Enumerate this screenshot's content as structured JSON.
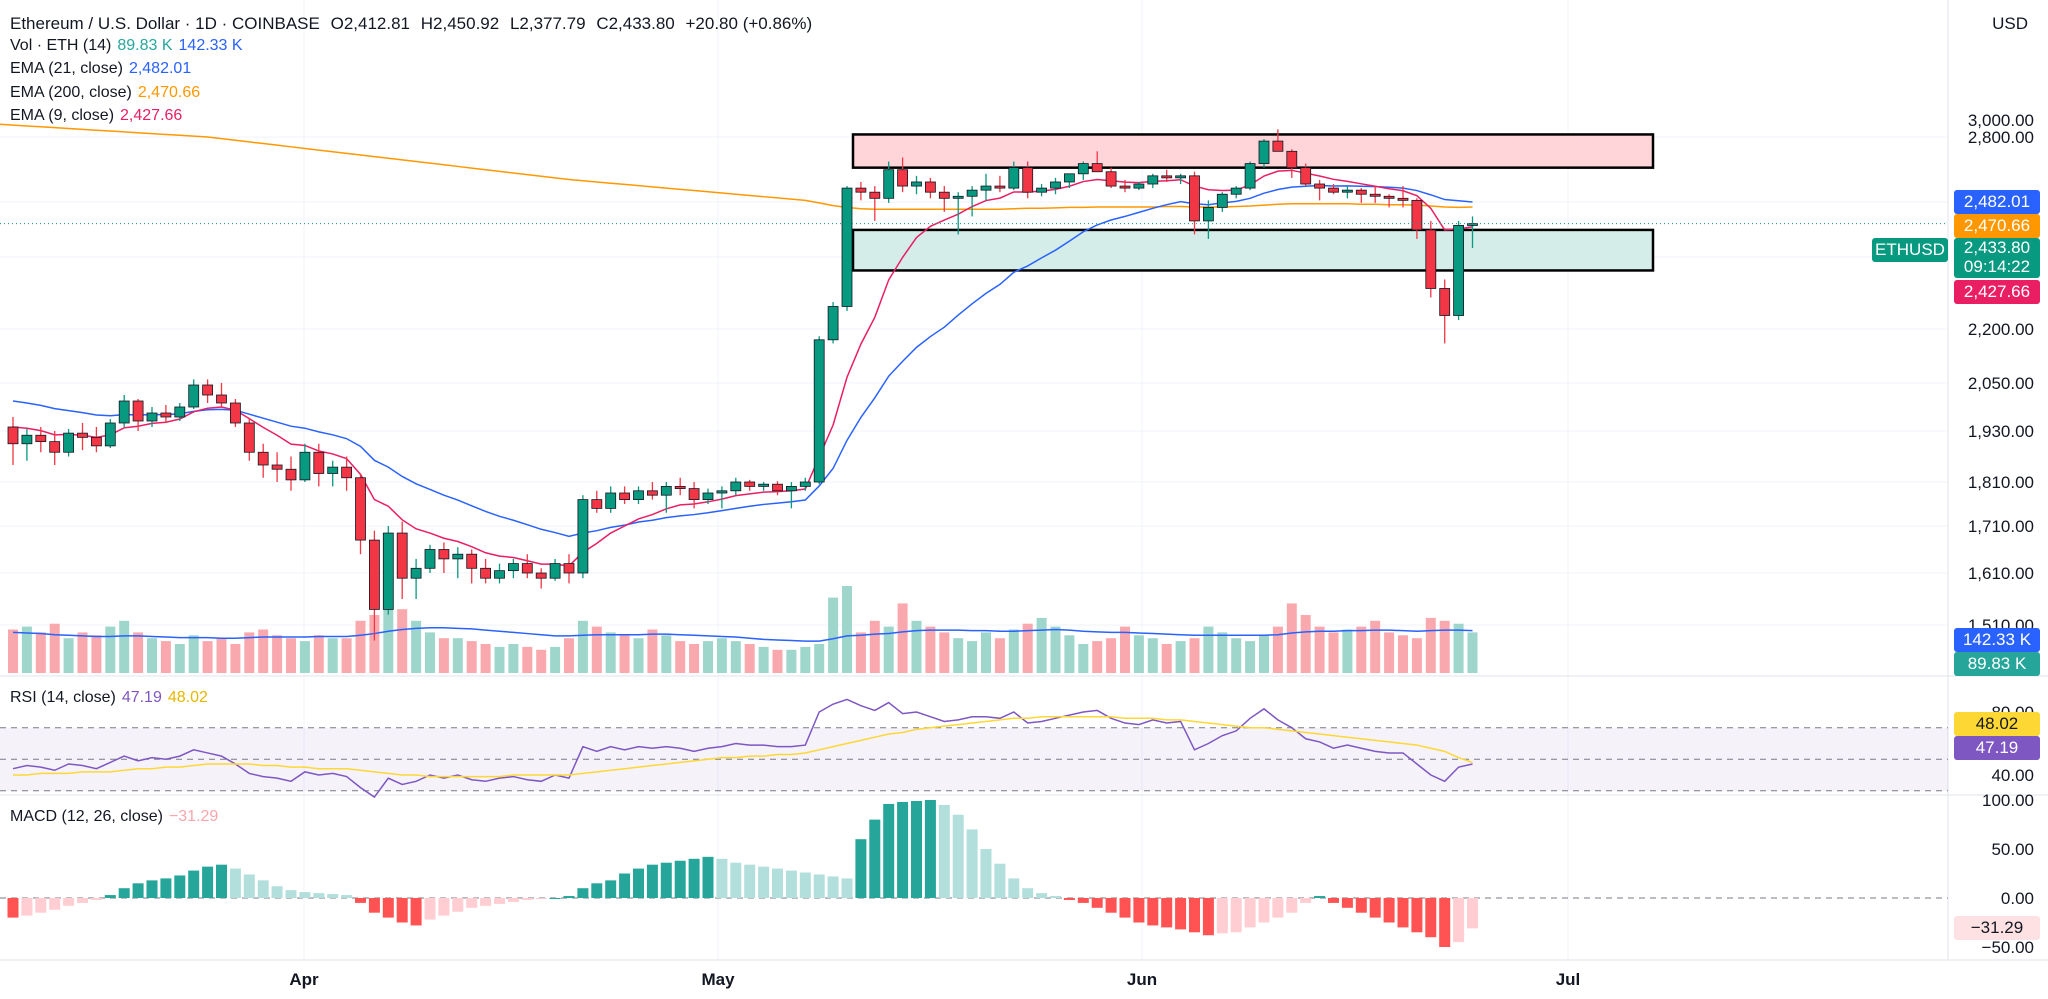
{
  "header": {
    "symbol": "Ethereum / U.S. Dollar · 1D · COINBASE",
    "open": "O2,412.81",
    "high": "H2,450.92",
    "low": "L2,377.79",
    "close": "C2,433.80",
    "change": "+20.80 (+0.86%)",
    "currency": "USD"
  },
  "legends": {
    "vol": {
      "label": "Vol · ETH (14)",
      "v1": "89.83 K",
      "v2": "142.33 K"
    },
    "ema21": {
      "label": "EMA (21, close)",
      "value": "2,482.01"
    },
    "ema200": {
      "label": "EMA (200, close)",
      "value": "2,470.66"
    },
    "ema9": {
      "label": "EMA (9, close)",
      "value": "2,427.66"
    },
    "rsi": {
      "label": "RSI (14, close)",
      "v1": "47.19",
      "v2": "48.02"
    },
    "macd": {
      "label": "MACD (12, 26, close)",
      "value": "−31.29"
    }
  },
  "tags": {
    "ema21": "2,482.01",
    "ema200": "2,470.66",
    "symbol": "ETHUSD",
    "price": "2,433.80",
    "countdown": "09:14:22",
    "ema9": "2,427.66",
    "vol_ma": "142.33 K",
    "vol": "89.83 K",
    "rsi_ma": "48.02",
    "rsi": "47.19",
    "macd": "−31.29"
  },
  "colors": {
    "up": "#089981",
    "down": "#f23645",
    "ema9": "#e91e63",
    "ema21": "#2962ff",
    "ema200": "#ff9800",
    "rsi": "#7e57c2",
    "rsi_ma": "#fdd835"
  },
  "chart_data": {
    "type": "candlestick",
    "price_axis": {
      "ticks": [
        "3,000.00",
        "2,800.00",
        "2,482.01",
        "2,200.00",
        "2,050.00",
        "1,930.00",
        "1,810.00",
        "1,710.00",
        "1,610.00",
        "1,510.00"
      ],
      "tick_values": [
        3000,
        2800,
        2482,
        2200,
        2050,
        1930,
        1810,
        1710,
        1610,
        1510
      ]
    },
    "rsi_axis": {
      "ticks": [
        "80.00",
        "40.00"
      ]
    },
    "macd_axis": {
      "ticks": [
        "100.00",
        "50.00",
        "0.00",
        "−50.00"
      ]
    },
    "x_labels": [
      "Apr",
      "May",
      "Jun",
      "Jul"
    ],
    "zones": [
      {
        "name": "resistance",
        "from": 2650,
        "to": 2830
      },
      {
        "name": "support",
        "from": 2330,
        "to": 2420
      }
    ],
    "candles": [
      [
        1940,
        1965,
        1850,
        1900
      ],
      [
        1900,
        1935,
        1860,
        1920
      ],
      [
        1920,
        1940,
        1880,
        1905
      ],
      [
        1905,
        1930,
        1850,
        1880
      ],
      [
        1880,
        1935,
        1870,
        1925
      ],
      [
        1925,
        1950,
        1885,
        1915
      ],
      [
        1915,
        1940,
        1880,
        1895
      ],
      [
        1895,
        1960,
        1890,
        1950
      ],
      [
        1950,
        2020,
        1940,
        2005
      ],
      [
        2005,
        2010,
        1930,
        1955
      ],
      [
        1955,
        1990,
        1940,
        1975
      ],
      [
        1975,
        1995,
        1950,
        1965
      ],
      [
        1965,
        2000,
        1955,
        1990
      ],
      [
        1990,
        2060,
        1985,
        2045
      ],
      [
        2045,
        2060,
        2000,
        2020
      ],
      [
        2020,
        2050,
        1990,
        2000
      ],
      [
        2000,
        2010,
        1940,
        1950
      ],
      [
        1950,
        1960,
        1860,
        1880
      ],
      [
        1880,
        1900,
        1820,
        1850
      ],
      [
        1850,
        1880,
        1810,
        1840
      ],
      [
        1840,
        1870,
        1790,
        1815
      ],
      [
        1815,
        1900,
        1810,
        1880
      ],
      [
        1880,
        1900,
        1800,
        1830
      ],
      [
        1830,
        1860,
        1800,
        1845
      ],
      [
        1845,
        1870,
        1790,
        1820
      ],
      [
        1820,
        1830,
        1650,
        1680
      ],
      [
        1680,
        1700,
        1480,
        1540
      ],
      [
        1540,
        1710,
        1530,
        1695
      ],
      [
        1695,
        1720,
        1560,
        1600
      ],
      [
        1600,
        1640,
        1560,
        1620
      ],
      [
        1620,
        1670,
        1610,
        1660
      ],
      [
        1660,
        1675,
        1610,
        1640
      ],
      [
        1640,
        1665,
        1600,
        1650
      ],
      [
        1650,
        1660,
        1590,
        1620
      ],
      [
        1620,
        1640,
        1590,
        1600
      ],
      [
        1600,
        1630,
        1590,
        1615
      ],
      [
        1615,
        1640,
        1600,
        1630
      ],
      [
        1630,
        1650,
        1600,
        1610
      ],
      [
        1610,
        1620,
        1580,
        1600
      ],
      [
        1600,
        1640,
        1595,
        1630
      ],
      [
        1630,
        1650,
        1590,
        1610
      ],
      [
        1610,
        1780,
        1600,
        1770
      ],
      [
        1770,
        1790,
        1740,
        1750
      ],
      [
        1750,
        1800,
        1740,
        1785
      ],
      [
        1785,
        1800,
        1760,
        1770
      ],
      [
        1770,
        1800,
        1760,
        1790
      ],
      [
        1790,
        1810,
        1770,
        1780
      ],
      [
        1780,
        1810,
        1740,
        1800
      ],
      [
        1800,
        1820,
        1780,
        1795
      ],
      [
        1795,
        1810,
        1750,
        1770
      ],
      [
        1770,
        1795,
        1760,
        1785
      ],
      [
        1785,
        1800,
        1750,
        1790
      ],
      [
        1790,
        1820,
        1780,
        1810
      ],
      [
        1810,
        1815,
        1790,
        1800
      ],
      [
        1800,
        1810,
        1790,
        1805
      ],
      [
        1805,
        1812,
        1780,
        1790
      ],
      [
        1790,
        1810,
        1750,
        1800
      ],
      [
        1800,
        1820,
        1790,
        1810
      ],
      [
        1810,
        2180,
        1805,
        2170
      ],
      [
        2170,
        2260,
        2160,
        2250
      ],
      [
        2250,
        2560,
        2240,
        2550
      ],
      [
        2550,
        2580,
        2490,
        2530
      ],
      [
        2530,
        2560,
        2440,
        2500
      ],
      [
        2500,
        2680,
        2480,
        2640
      ],
      [
        2640,
        2700,
        2530,
        2560
      ],
      [
        2560,
        2610,
        2520,
        2580
      ],
      [
        2580,
        2600,
        2500,
        2530
      ],
      [
        2530,
        2560,
        2460,
        2500
      ],
      [
        2500,
        2530,
        2410,
        2510
      ],
      [
        2510,
        2560,
        2450,
        2540
      ],
      [
        2540,
        2620,
        2490,
        2560
      ],
      [
        2560,
        2610,
        2530,
        2550
      ],
      [
        2550,
        2680,
        2540,
        2650
      ],
      [
        2650,
        2680,
        2500,
        2530
      ],
      [
        2530,
        2570,
        2510,
        2550
      ],
      [
        2550,
        2600,
        2520,
        2580
      ],
      [
        2580,
        2620,
        2550,
        2620
      ],
      [
        2620,
        2680,
        2590,
        2670
      ],
      [
        2670,
        2730,
        2630,
        2630
      ],
      [
        2630,
        2650,
        2550,
        2560
      ],
      [
        2560,
        2590,
        2530,
        2550
      ],
      [
        2550,
        2580,
        2540,
        2570
      ],
      [
        2570,
        2620,
        2550,
        2610
      ],
      [
        2610,
        2640,
        2580,
        2600
      ],
      [
        2600,
        2620,
        2570,
        2610
      ],
      [
        2610,
        2630,
        2410,
        2440
      ],
      [
        2440,
        2490,
        2400,
        2470
      ],
      [
        2470,
        2530,
        2460,
        2520
      ],
      [
        2520,
        2560,
        2500,
        2550
      ],
      [
        2550,
        2680,
        2540,
        2670
      ],
      [
        2670,
        2790,
        2650,
        2780
      ],
      [
        2780,
        2890,
        2740,
        2730
      ],
      [
        2730,
        2740,
        2600,
        2650
      ],
      [
        2650,
        2670,
        2560,
        2570
      ],
      [
        2570,
        2590,
        2490,
        2550
      ],
      [
        2550,
        2570,
        2520,
        2530
      ],
      [
        2530,
        2560,
        2500,
        2540
      ],
      [
        2540,
        2550,
        2480,
        2520
      ],
      [
        2520,
        2560,
        2480,
        2510
      ],
      [
        2510,
        2520,
        2470,
        2500
      ],
      [
        2500,
        2560,
        2470,
        2490
      ],
      [
        2490,
        2500,
        2400,
        2420
      ],
      [
        2420,
        2440,
        2270,
        2290
      ],
      [
        2290,
        2310,
        2160,
        2230
      ],
      [
        2230,
        2440,
        2220,
        2430
      ],
      [
        2430,
        2450,
        2380,
        2434
      ]
    ],
    "ema9": [
      1940,
      1937,
      1931,
      1921,
      1922,
      1920,
      1915,
      1921,
      1938,
      1942,
      1949,
      1952,
      1960,
      1978,
      1987,
      1990,
      1982,
      1961,
      1939,
      1920,
      1899,
      1896,
      1883,
      1876,
      1865,
      1828,
      1770,
      1755,
      1724,
      1704,
      1695,
      1684,
      1677,
      1666,
      1653,
      1646,
      1643,
      1636,
      1629,
      1629,
      1625,
      1654,
      1673,
      1695,
      1710,
      1726,
      1736,
      1749,
      1758,
      1760,
      1765,
      1771,
      1779,
      1783,
      1787,
      1788,
      1790,
      1794,
      1869,
      1945,
      2066,
      2158,
      2226,
      2309,
      2359,
      2403,
      2428,
      2442,
      2455,
      2472,
      2489,
      2501,
      2531,
      2531,
      2535,
      2544,
      2559,
      2582,
      2592,
      2586,
      2579,
      2577,
      2583,
      2586,
      2591,
      2560,
      2542,
      2538,
      2540,
      2566,
      2609,
      2633,
      2637,
      2623,
      2609,
      2593,
      2583,
      2571,
      2559,
      2547,
      2537,
      2513,
      2468,
      2420,
      2422,
      2427
    ],
    "ema21": [
      2005,
      2000,
      1994,
      1986,
      1981,
      1976,
      1970,
      1968,
      1971,
      1970,
      1971,
      1971,
      1973,
      1979,
      1983,
      1984,
      1982,
      1972,
      1962,
      1952,
      1942,
      1937,
      1928,
      1921,
      1912,
      1894,
      1861,
      1845,
      1823,
      1806,
      1793,
      1780,
      1769,
      1756,
      1743,
      1732,
      1723,
      1713,
      1703,
      1696,
      1688,
      1695,
      1700,
      1707,
      1712,
      1719,
      1723,
      1729,
      1733,
      1736,
      1740,
      1745,
      1750,
      1755,
      1759,
      1762,
      1765,
      1769,
      1801,
      1842,
      1908,
      1964,
      2013,
      2069,
      2110,
      2149,
      2179,
      2204,
      2231,
      2256,
      2279,
      2299,
      2326,
      2340,
      2358,
      2375,
      2395,
      2416,
      2431,
      2442,
      2450,
      2459,
      2468,
      2476,
      2484,
      2478,
      2476,
      2480,
      2485,
      2500,
      2525,
      2543,
      2555,
      2559,
      2563,
      2560,
      2561,
      2559,
      2557,
      2554,
      2550,
      2538,
      2517,
      2494,
      2488,
      2482
    ],
    "ema200": [
      2940,
      2930,
      2920,
      2910,
      2900,
      2890,
      2880,
      2870,
      2860,
      2850,
      2840,
      2830,
      2820,
      2810,
      2800,
      2792,
      2784,
      2776,
      2768,
      2760,
      2752,
      2744,
      2736,
      2728,
      2720,
      2712,
      2704,
      2696,
      2688,
      2680,
      2672,
      2664,
      2656,
      2648,
      2640,
      2632,
      2624,
      2616,
      2608,
      2600,
      2592,
      2586,
      2580,
      2574,
      2568,
      2562,
      2556,
      2550,
      2544,
      2538,
      2532,
      2526,
      2520,
      2514,
      2508,
      2502,
      2496,
      2490,
      2480,
      2474,
      2470,
      2467,
      2466,
      2466,
      2466,
      2466,
      2466,
      2466,
      2466,
      2466,
      2466,
      2466,
      2467,
      2468,
      2468,
      2469,
      2470,
      2470,
      2471,
      2471,
      2471,
      2471,
      2471,
      2472,
      2472,
      2471,
      2471,
      2471,
      2472,
      2473,
      2475,
      2477,
      2478,
      2478,
      2478,
      2478,
      2478,
      2477,
      2477,
      2476,
      2476,
      2475,
      2473,
      2471,
      2470,
      2471
    ],
    "volume": [
      75,
      80,
      70,
      85,
      60,
      70,
      65,
      80,
      90,
      70,
      60,
      55,
      50,
      65,
      55,
      60,
      50,
      70,
      75,
      65,
      60,
      55,
      65,
      60,
      60,
      90,
      100,
      120,
      110,
      90,
      70,
      60,
      60,
      55,
      50,
      45,
      50,
      45,
      40,
      45,
      60,
      90,
      80,
      70,
      65,
      60,
      75,
      65,
      55,
      50,
      55,
      60,
      55,
      50,
      45,
      40,
      40,
      45,
      50,
      130,
      150,
      70,
      90,
      80,
      120,
      90,
      80,
      70,
      60,
      55,
      70,
      60,
      75,
      85,
      95,
      80,
      65,
      50,
      55,
      60,
      80,
      65,
      60,
      50,
      55,
      60,
      80,
      70,
      60,
      55,
      65,
      80,
      120,
      100,
      80,
      70,
      75,
      80,
      90,
      70,
      65,
      60,
      95,
      90,
      85,
      70
    ],
    "vol_ma": [
      70,
      69,
      68,
      66,
      65,
      64,
      63,
      63,
      64,
      64,
      63,
      62,
      61,
      61,
      61,
      60,
      60,
      61,
      62,
      62,
      62,
      62,
      63,
      63,
      63,
      65,
      68,
      72,
      75,
      77,
      78,
      78,
      77,
      76,
      74,
      72,
      70,
      68,
      66,
      64,
      64,
      65,
      66,
      66,
      66,
      66,
      67,
      67,
      66,
      65,
      64,
      63,
      62,
      60,
      58,
      57,
      56,
      55,
      55,
      59,
      64,
      65,
      67,
      68,
      71,
      73,
      74,
      74,
      74,
      73,
      73,
      72,
      72,
      73,
      74,
      75,
      74,
      72,
      71,
      70,
      70,
      69,
      68,
      67,
      66,
      65,
      65,
      65,
      65,
      65,
      65,
      66,
      69,
      71,
      72,
      72,
      73,
      73,
      74,
      74,
      73,
      72,
      73,
      74,
      74,
      73
    ],
    "rsi": [
      44,
      46,
      45,
      43,
      47,
      46,
      44,
      48,
      52,
      49,
      51,
      50,
      52,
      56,
      54,
      52,
      47,
      41,
      39,
      38,
      36,
      42,
      40,
      41,
      39,
      32,
      26,
      38,
      34,
      36,
      40,
      38,
      40,
      37,
      36,
      38,
      39,
      37,
      36,
      40,
      38,
      58,
      55,
      58,
      56,
      58,
      57,
      58,
      57,
      55,
      57,
      58,
      60,
      59,
      59,
      58,
      58,
      59,
      80,
      85,
      88,
      84,
      81,
      86,
      79,
      80,
      77,
      74,
      75,
      77,
      77,
      76,
      80,
      73,
      74,
      76,
      78,
      80,
      81,
      76,
      73,
      72,
      75,
      73,
      74,
      56,
      60,
      65,
      68,
      76,
      82,
      75,
      70,
      63,
      61,
      57,
      59,
      57,
      55,
      54,
      54,
      47,
      40,
      36,
      45,
      47
    ],
    "rsi_ma": [
      40,
      40,
      41,
      41,
      41,
      42,
      42,
      42,
      43,
      44,
      44,
      45,
      45,
      46,
      47,
      47,
      47,
      47,
      46,
      46,
      45,
      45,
      44,
      44,
      44,
      43,
      42,
      41,
      40,
      40,
      39,
      39,
      39,
      39,
      39,
      39,
      40,
      40,
      40,
      40,
      40,
      41,
      42,
      43,
      44,
      45,
      46,
      47,
      48,
      49,
      50,
      51,
      51,
      52,
      52,
      53,
      53,
      54,
      56,
      58,
      60,
      62,
      64,
      66,
      67,
      69,
      70,
      71,
      72,
      73,
      74,
      75,
      76,
      76,
      77,
      77,
      77,
      77,
      77,
      77,
      76,
      76,
      76,
      75,
      75,
      74,
      73,
      72,
      71,
      70,
      70,
      69,
      68,
      67,
      66,
      65,
      64,
      63,
      62,
      61,
      60,
      59,
      57,
      55,
      51,
      48
    ],
    "macd": [
      -20,
      -18,
      -15,
      -12,
      -8,
      -5,
      -2,
      3,
      10,
      15,
      18,
      20,
      23,
      28,
      32,
      34,
      30,
      24,
      18,
      12,
      8,
      6,
      5,
      4,
      3,
      -5,
      -15,
      -20,
      -25,
      -28,
      -22,
      -18,
      -14,
      -10,
      -8,
      -6,
      -4,
      -2,
      -1,
      0,
      2,
      10,
      15,
      18,
      25,
      30,
      34,
      36,
      38,
      40,
      42,
      40,
      36,
      34,
      32,
      30,
      28,
      26,
      24,
      22,
      20,
      60,
      80,
      96,
      98,
      99,
      100,
      95,
      85,
      70,
      50,
      35,
      20,
      10,
      5,
      2,
      -2,
      -5,
      -10,
      -15,
      -20,
      -25,
      -28,
      -30,
      -32,
      -35,
      -38,
      -36,
      -35,
      -30,
      -25,
      -20,
      -15,
      -5,
      2,
      -5,
      -10,
      -15,
      -20,
      -25,
      -30,
      -35,
      -40,
      -50,
      -45,
      -31
    ]
  }
}
